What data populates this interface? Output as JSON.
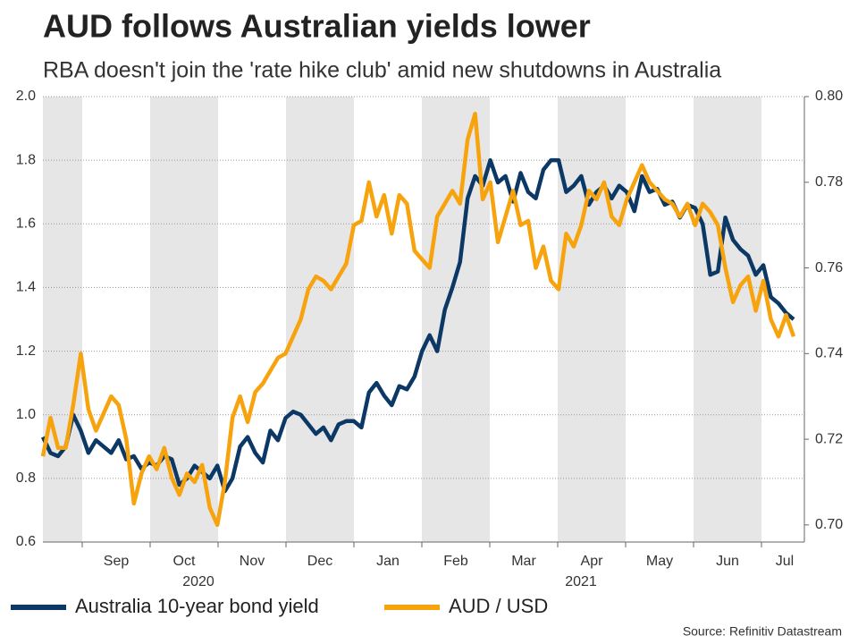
{
  "chart_data": {
    "type": "line",
    "title": "AUD follows Australian yields lower",
    "subtitle": "RBA doesn't join the 'rate hike club' amid new shutdowns in Australia",
    "source": "Source: Refinitiv Datastream",
    "months": [
      "Sep",
      "Oct",
      "Nov",
      "Dec",
      "Jan",
      "Feb",
      "Mar",
      "Apr",
      "May",
      "Jun",
      "Jul"
    ],
    "years": [
      "2020",
      "2021"
    ],
    "ylim": [
      0.6,
      2.0
    ],
    "yticks": [
      0.6,
      0.8,
      {
        "value": 1,
        "label": "1.0"
      },
      1.2,
      1.4,
      1.6,
      1.8,
      {
        "value": 2,
        "label": "2.0"
      }
    ],
    "y2lim": [
      0.696,
      0.8
    ],
    "y2ticks": [
      {
        "value": 0.7,
        "label": "0.70"
      },
      {
        "value": 0.72,
        "label": "0.72"
      },
      {
        "value": 0.74,
        "label": "0.74"
      },
      {
        "value": 0.76,
        "label": "0.76"
      },
      {
        "value": 0.78,
        "label": "0.78"
      },
      {
        "value": 0.8,
        "label": "0.80"
      }
    ],
    "grid": true,
    "series": [
      {
        "name": "Australia 10-year bond yield",
        "color": "#0c3866",
        "values": [
          0.93,
          0.88,
          0.87,
          0.9,
          1.0,
          0.95,
          0.88,
          0.92,
          0.9,
          0.88,
          0.92,
          0.86,
          0.87,
          0.83,
          0.85,
          0.84,
          0.87,
          0.86,
          0.78,
          0.8,
          0.84,
          0.82,
          0.8,
          0.84,
          0.76,
          0.8,
          0.9,
          0.93,
          0.88,
          0.85,
          0.95,
          0.92,
          0.99,
          1.01,
          1.0,
          0.97,
          0.94,
          0.96,
          0.92,
          0.97,
          0.98,
          0.98,
          0.96,
          1.07,
          1.1,
          1.06,
          1.03,
          1.09,
          1.08,
          1.12,
          1.2,
          1.25,
          1.2,
          1.33,
          1.4,
          1.48,
          1.68,
          1.75,
          1.72,
          1.8,
          1.73,
          1.75,
          1.67,
          1.76,
          1.7,
          1.68,
          1.77,
          1.8,
          1.8,
          1.7,
          1.72,
          1.75,
          1.66,
          1.7,
          1.72,
          1.68,
          1.72,
          1.7,
          1.64,
          1.75,
          1.7,
          1.71,
          1.66,
          1.67,
          1.62,
          1.66,
          1.65,
          1.6,
          1.44,
          1.45,
          1.62,
          1.55,
          1.52,
          1.5,
          1.44,
          1.47,
          1.37,
          1.35,
          1.32,
          1.3
        ]
      },
      {
        "name": "AUD / USD",
        "color": "#f7a30e",
        "axis": "y2",
        "values": [
          0.716,
          0.725,
          0.718,
          0.718,
          0.728,
          0.74,
          0.727,
          0.722,
          0.726,
          0.73,
          0.728,
          0.72,
          0.705,
          0.712,
          0.716,
          0.713,
          0.718,
          0.711,
          0.707,
          0.712,
          0.71,
          0.714,
          0.704,
          0.7,
          0.71,
          0.725,
          0.73,
          0.724,
          0.731,
          0.733,
          0.736,
          0.739,
          0.74,
          0.744,
          0.748,
          0.755,
          0.758,
          0.757,
          0.755,
          0.758,
          0.761,
          0.77,
          0.771,
          0.78,
          0.772,
          0.777,
          0.768,
          0.777,
          0.775,
          0.764,
          0.762,
          0.76,
          0.772,
          0.775,
          0.778,
          0.775,
          0.79,
          0.796,
          0.776,
          0.78,
          0.766,
          0.772,
          0.778,
          0.77,
          0.771,
          0.76,
          0.765,
          0.757,
          0.755,
          0.768,
          0.765,
          0.77,
          0.778,
          0.776,
          0.78,
          0.772,
          0.77,
          0.776,
          0.78,
          0.784,
          0.78,
          0.778,
          0.776,
          0.775,
          0.772,
          0.775,
          0.77,
          0.775,
          0.773,
          0.77,
          0.76,
          0.752,
          0.756,
          0.758,
          0.75,
          0.757,
          0.748,
          0.744,
          0.749,
          0.744
        ]
      }
    ]
  }
}
